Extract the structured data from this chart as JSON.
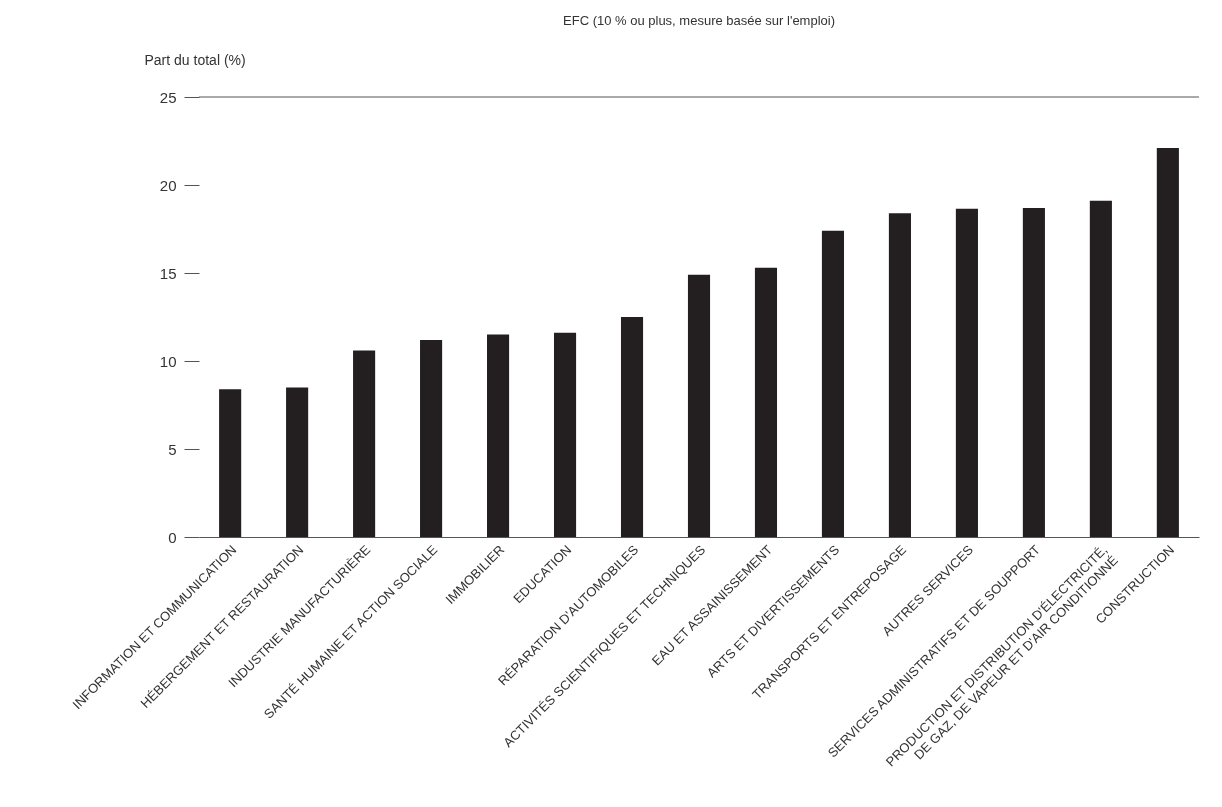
{
  "chart_data": {
    "type": "bar",
    "title": "EFC (10 % ou plus, mesure basée sur l'emploi)",
    "ylabel": "Part du total (%)",
    "categories": [
      "INFORMATION ET COMMUNICATION",
      "HÉBERGEMENT ET RESTAURATION",
      "INDUSTRIE MANUFACTURIÈRE",
      "SANTÉ HUMAINE ET ACTION SOCIALE",
      "IMMOBILIER",
      "EDUCATION",
      "RÉPARATION D'AUTOMOBILES",
      "ACTIVITÉS SCIENTIFIQUES ET TECHNIQUES",
      "EAU ET ASSAINISSEMENT",
      "ARTS ET DIVERTISSEMENTS",
      "TRANSPORTS ET ENTREPOSAGE",
      "AUTRES SERVICES",
      "SERVICES ADMINISTRATIFS ET DE SOUPPORT",
      "PRODUCTION ET DISTRIBUTION D'ÉLECTRICITÉ,\nDE GAZ, DE VAPEUR ET D'AIR CONDITIONNÉ",
      "CONSTRUCTION"
    ],
    "values": [
      8.4,
      8.5,
      10.6,
      11.2,
      11.5,
      11.6,
      12.5,
      14.9,
      15.3,
      17.4,
      18.4,
      18.65,
      18.7,
      19.1,
      22.1
    ],
    "color": "#231f20",
    "ylim": [
      0,
      25
    ],
    "yticks": [
      0,
      5,
      10,
      15,
      20,
      25
    ],
    "ref_lines": [
      {
        "axis": "y",
        "value": 25,
        "label": null
      }
    ],
    "grid": false
  }
}
